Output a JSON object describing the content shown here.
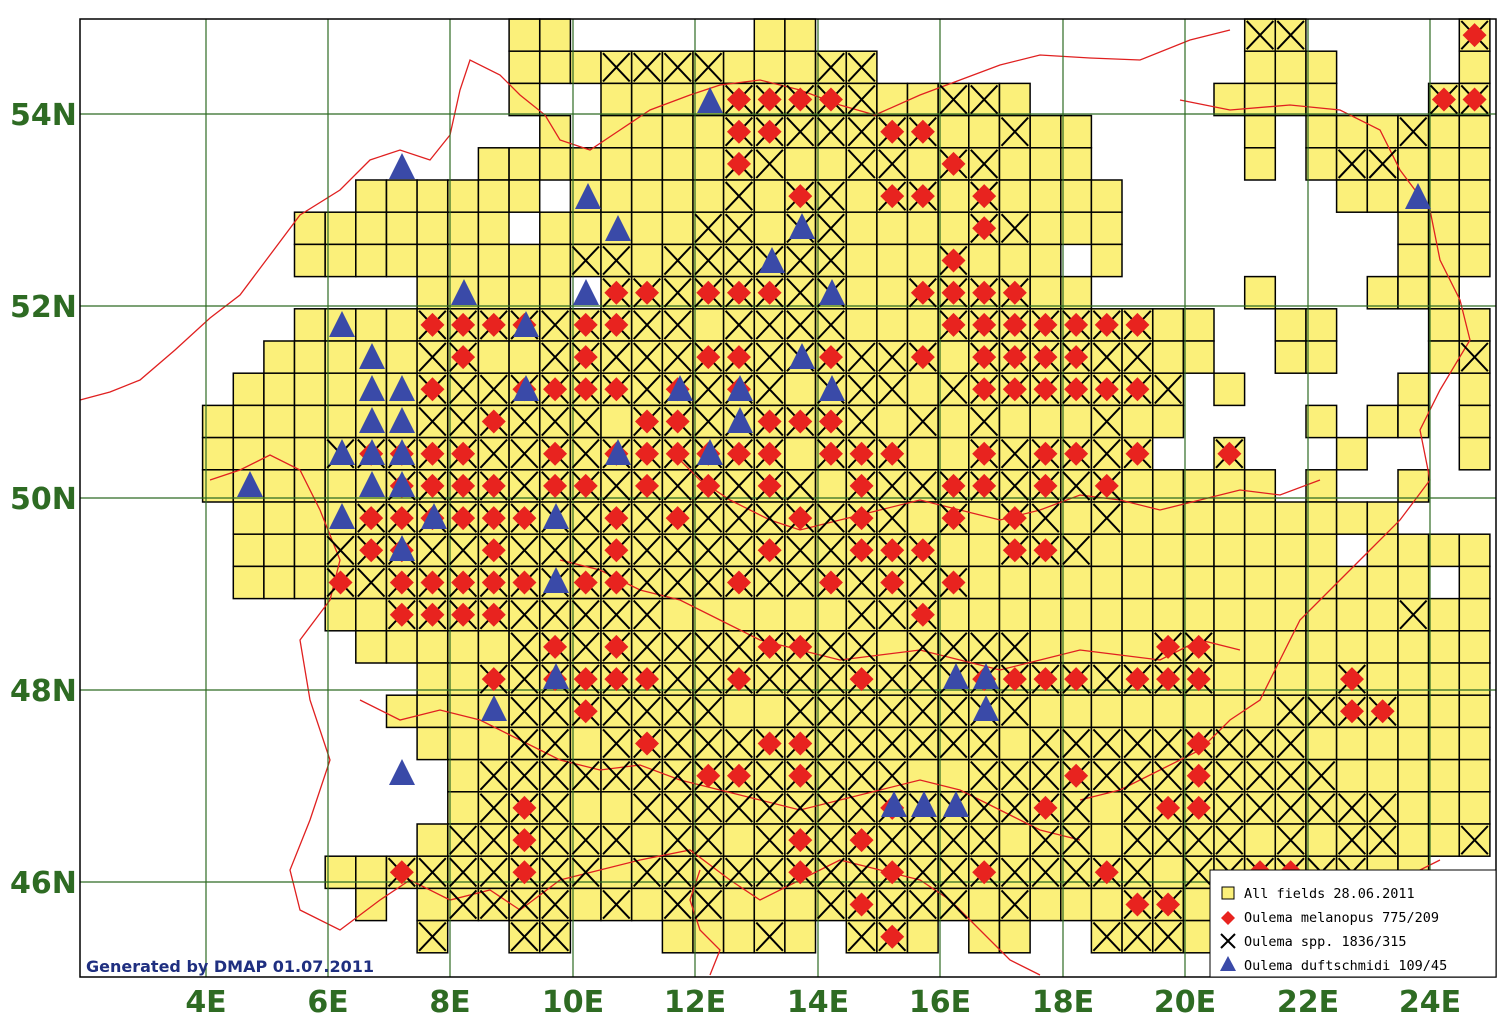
{
  "map": {
    "lat_labels": [
      "54N",
      "52N",
      "50N",
      "48N",
      "46N"
    ],
    "lon_labels": [
      "4E",
      "6E",
      "8E",
      "10E",
      "12E",
      "14E",
      "16E",
      "18E",
      "20E",
      "22E",
      "24E"
    ],
    "credit": "Generated by DMAP 01.07.2011",
    "colors": {
      "cell_fill": "#fbf07a",
      "cell_stroke": "#000000",
      "grid": "#2e6b23",
      "borders": "#e02020",
      "diamond": "#e8231f",
      "triangle": "#3a4aa8",
      "label": "#2e6b23",
      "credit": "#1f2f80"
    }
  },
  "legend": {
    "items": [
      {
        "symbol": "square-icon",
        "label": "All fields 28.06.2011"
      },
      {
        "symbol": "diamond-icon",
        "label": "Oulema melanopus 775/209"
      },
      {
        "symbol": "cross-icon",
        "label": "Oulema spp. 1836/315"
      },
      {
        "symbol": "triangle-icon",
        "label": "Oulema duftschmidi 109/45"
      }
    ]
  }
}
